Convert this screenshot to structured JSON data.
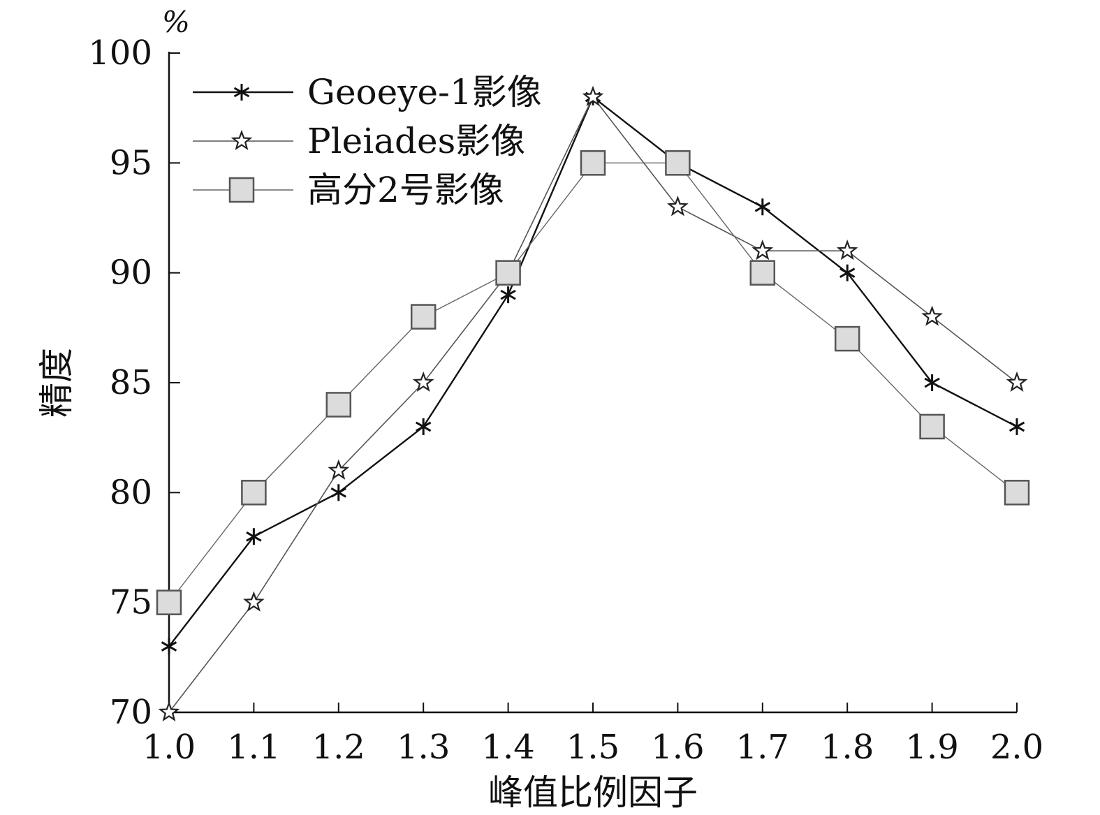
{
  "chart_data": {
    "type": "line",
    "title": "",
    "xlabel": "峰值比例因子",
    "ylabel": "精度",
    "y_unit": "%",
    "x": [
      1.0,
      1.1,
      1.2,
      1.3,
      1.4,
      1.5,
      1.6,
      1.7,
      1.8,
      1.9,
      2.0
    ],
    "x_tick_labels": [
      "1.0",
      "1.1",
      "1.2",
      "1.3",
      "1.4",
      "1.5",
      "1.6",
      "1.7",
      "1.8",
      "1.9",
      "2.0"
    ],
    "y_ticks": [
      70,
      75,
      80,
      85,
      90,
      95,
      100
    ],
    "xlim": [
      1.0,
      2.0
    ],
    "ylim": [
      70,
      100
    ],
    "grid": false,
    "legend_position": "top-left",
    "series": [
      {
        "name": "Geoeye-1影像",
        "marker": "asterisk",
        "color": "#555555",
        "values": [
          73,
          78,
          80,
          83,
          89,
          98,
          95,
          93,
          90,
          85,
          83
        ]
      },
      {
        "name": "Pleiades影像",
        "marker": "star",
        "color": "#555555",
        "values": [
          70,
          75,
          81,
          85,
          90,
          98,
          93,
          91,
          91,
          88,
          85
        ]
      },
      {
        "name": "高分2号影像",
        "marker": "square",
        "color": "#666666",
        "values": [
          75,
          80,
          84,
          88,
          90,
          95,
          95,
          90,
          87,
          83,
          80
        ]
      }
    ]
  }
}
